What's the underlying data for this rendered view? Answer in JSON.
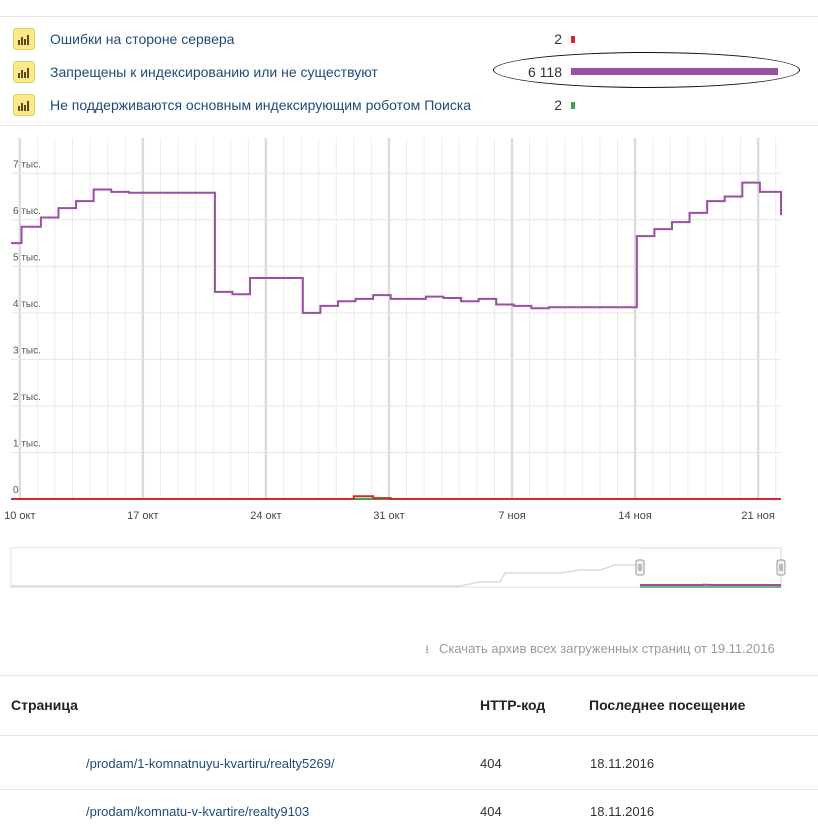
{
  "legend": [
    {
      "label": "Ошибки на стороне сервера",
      "count": "2",
      "color": "#cc2b2b",
      "fraction": 0.0003
    },
    {
      "label": "Запрещены к индексированию или не существуют",
      "count": "6 118",
      "color": "#9b4fa3",
      "fraction": 1.0
    },
    {
      "label": "Не поддерживаются основным индексирующим роботом Поиска",
      "count": "2",
      "color": "#3aa64a",
      "fraction": 0.0003
    }
  ],
  "chart_data": {
    "type": "line",
    "title": "",
    "xlabel": "",
    "ylabel": "",
    "ylim": [
      0,
      7500
    ],
    "y_ticks": [
      "0",
      "1 тыс.",
      "2 тыс.",
      "3 тыс.",
      "4 тыс.",
      "5 тыс.",
      "6 тыс.",
      "7 тыс."
    ],
    "x_ticks": [
      "10 окт",
      "17 окт",
      "24 окт",
      "31 окт",
      "7 ноя",
      "14 ноя",
      "21 ноя"
    ],
    "x_tick_days": [
      10,
      17,
      24,
      31,
      38,
      45,
      52
    ],
    "x_range_days": [
      9.5,
      53.3
    ],
    "grid": true,
    "series": [
      {
        "color": "#9b4fa3",
        "x": [
          9.5,
          10.1,
          11.2,
          12.2,
          13.2,
          14.2,
          15.2,
          16.2,
          21.1,
          22.1,
          23.1,
          26.1,
          27.1,
          28.1,
          29.1,
          30.1,
          31.1,
          32.1,
          33.1,
          34.1,
          35.1,
          36.1,
          37.1,
          38.1,
          39.1,
          40.1,
          45.1,
          46.1,
          47.1,
          48.1,
          49.1,
          50.1,
          51.1,
          52.1,
          53.3
        ],
        "y": [
          5500,
          5850,
          6050,
          6250,
          6400,
          6650,
          6600,
          6580,
          4450,
          4400,
          4750,
          4000,
          4150,
          4250,
          4300,
          4380,
          4300,
          4300,
          4350,
          4320,
          4250,
          4300,
          4180,
          4150,
          4100,
          4120,
          5650,
          5800,
          5950,
          6150,
          6400,
          6500,
          6800,
          6600,
          6100
        ]
      },
      {
        "color": "#cc2b2b",
        "x": [
          9.5,
          28.9,
          29.0,
          30.0,
          30.1,
          31.1,
          53.3
        ],
        "y": [
          0,
          0,
          60,
          60,
          20,
          0,
          0
        ]
      },
      {
        "color": "#3aa64a",
        "x": [
          9.5,
          53.3
        ],
        "y": [
          0,
          0
        ]
      }
    ]
  },
  "download": {
    "text": "Скачать архив всех загруженных страниц от 19.11.2016"
  },
  "table": {
    "headers": [
      "Страница",
      "HTTP-код",
      "Последнее посещение"
    ],
    "rows": [
      {
        "page": "/prodam/1-komnatnuyu-kvartiru/realty5269/",
        "code": "404",
        "date": "18.11.2016"
      },
      {
        "page": "/prodam/komnatu-v-kvartire/realty9103",
        "code": "404",
        "date": "18.11.2016"
      }
    ]
  }
}
